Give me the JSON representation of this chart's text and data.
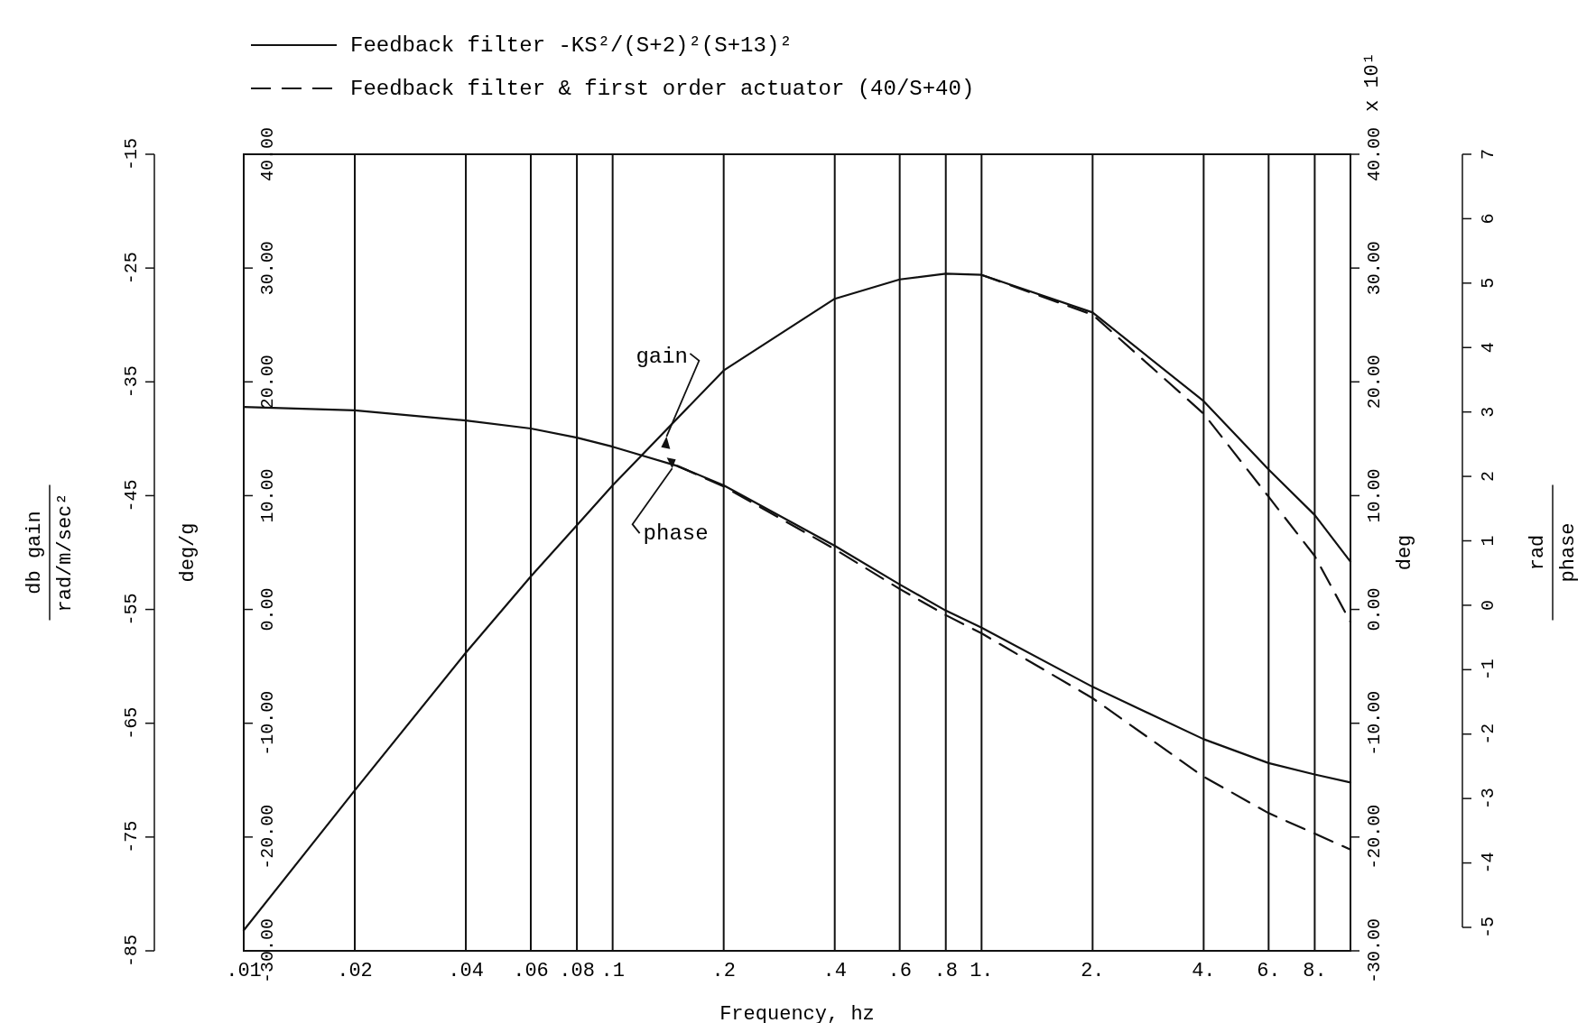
{
  "chart_data": {
    "type": "line",
    "xlabel": "Frequency, hz",
    "ylabel": "deg/g",
    "y2label": "deg",
    "y3label": "db gain\nrad/m/sec²",
    "log": "x",
    "grid": "x",
    "legend": "top",
    "xlim": [
      0.01,
      10
    ],
    "xticks": [
      {
        "value": 0.01,
        "label": ".01"
      },
      {
        "value": 0.02,
        "label": ".02"
      },
      {
        "value": 0.04,
        "label": ".04"
      },
      {
        "value": 0.06,
        "label": ".06"
      },
      {
        "value": 0.08,
        "label": ".08"
      },
      {
        "value": 0.1,
        "label": ".1"
      },
      {
        "value": 0.2,
        "label": ".2"
      },
      {
        "value": 0.4,
        "label": ".4"
      },
      {
        "value": 0.6,
        "label": ".6"
      },
      {
        "value": 0.8,
        "label": ".8"
      },
      {
        "value": 1,
        "label": "1."
      },
      {
        "value": 2,
        "label": "2."
      },
      {
        "value": 4,
        "label": "4."
      },
      {
        "value": 6,
        "label": "6."
      },
      {
        "value": 8,
        "label": "8."
      }
    ],
    "ylim": [
      -30,
      40
    ],
    "yticks": [
      {
        "value": -30,
        "label": "-30.00"
      },
      {
        "value": -20,
        "label": "-20.00"
      },
      {
        "value": -10,
        "label": "-10.00"
      },
      {
        "value": 0,
        "label": "0.00"
      },
      {
        "value": 10,
        "label": "10.00"
      },
      {
        "value": 20,
        "label": "20.00"
      },
      {
        "value": 30,
        "label": "30.00"
      },
      {
        "value": 40,
        "label": "40.00"
      }
    ],
    "y2lim": [
      -30,
      40
    ],
    "y2ticks": [
      {
        "value": -30,
        "label": "-30.00"
      },
      {
        "value": -20,
        "label": "-20.00"
      },
      {
        "value": -10,
        "label": "-10.00"
      },
      {
        "value": 0,
        "label": "0.00"
      },
      {
        "value": 10,
        "label": "10.00"
      },
      {
        "value": 20,
        "label": "20.00"
      },
      {
        "value": 30,
        "label": "30.00"
      },
      {
        "value": 40,
        "label": "40.00"
      }
    ],
    "y3lim": [
      -85,
      -15
    ],
    "y3ticks": [
      -85,
      -75,
      -65,
      -55,
      -45,
      -35,
      -25,
      -15
    ],
    "annotations": [
      {
        "text": "gain",
        "x": 0.14,
        "y": 15.2
      },
      {
        "text": "phase",
        "x": 0.145,
        "y": 12.4
      },
      "x 10¹",
      "rad",
      "phase",
      "-5",
      "-4",
      "-3",
      "-2",
      "-1",
      "0",
      "1",
      "2",
      "3",
      "4",
      "5",
      "6",
      "7"
    ],
    "series": [
      {
        "name": "Feedback filter  -KS²/(S+2)²(S+13)²",
        "color": "#111111",
        "line_style": "solid",
        "x": [
          0.01,
          0.02,
          0.04,
          0.06,
          0.08,
          0.1,
          0.2,
          0.4,
          0.6,
          0.8,
          1,
          2,
          4,
          6,
          8,
          10
        ],
        "values": [
          -28.2,
          -15.9,
          -3.8,
          2.9,
          7.4,
          10.9,
          21.0,
          27.3,
          29.0,
          29.5,
          29.4,
          26.1,
          18.3,
          12.3,
          8.3,
          4.2
        ]
      },
      {
        "name": "Feedback filter & first order actuator (40/S+40)",
        "color": "#111111",
        "line_style": "dashed",
        "x": [
          1,
          2,
          4,
          6,
          8,
          10
        ],
        "values": [
          29.4,
          25.9,
          17.2,
          9.9,
          4.7,
          -1.1
        ]
      },
      {
        "color": "#111111",
        "line_style": "solid",
        "x": [
          0.01,
          0.02,
          0.04,
          0.06,
          0.08,
          0.1,
          0.15,
          0.2,
          0.4,
          0.6,
          0.8,
          1,
          2,
          4,
          6,
          8,
          10
        ],
        "values": [
          17.8,
          17.5,
          16.6,
          15.9,
          15.1,
          14.3,
          12.6,
          10.9,
          5.6,
          2.2,
          -0.1,
          -1.6,
          -6.8,
          -11.4,
          -13.5,
          -14.5,
          -15.2
        ]
      },
      {
        "color": "#111111",
        "line_style": "dashed",
        "x": [
          0.15,
          0.2,
          0.4,
          0.6,
          0.8,
          1,
          2,
          4,
          6,
          8,
          10
        ],
        "values": [
          12.6,
          10.8,
          5.3,
          1.8,
          -0.5,
          -2.1,
          -7.8,
          -14.7,
          -17.9,
          -19.7,
          -21.1
        ]
      }
    ]
  }
}
